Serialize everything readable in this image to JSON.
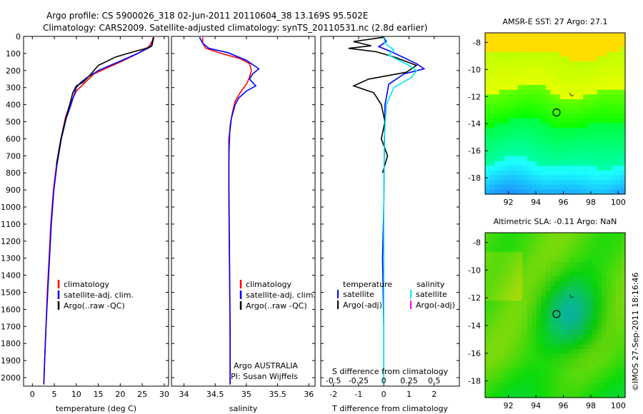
{
  "header": {
    "line1": "Argo profile: CS 5900026_318 02-Jun-2011 20110604_38 13.169S 95.502E",
    "line2": "Climatology: CARS2009. Satellite-adjusted climatology: synTS_20110531.nc (2.8d earlier)"
  },
  "side_label": "©IMOS 27-Sep-2011 18:16:46",
  "colors": {
    "clim": "#ff0000",
    "sat": "#0000ff",
    "argo": "#000000",
    "sal_sat": "#00e5ee",
    "sal_argo": "#ff00ff"
  },
  "chart_data": [
    {
      "type": "line",
      "id": "temperature",
      "xlabel": "temperature (deg C)",
      "xlim": [
        -2,
        31
      ],
      "ylim": [
        2050,
        0
      ],
      "xticks": [
        "0",
        "5",
        "10",
        "15",
        "20",
        "25",
        "30"
      ],
      "yticks": [
        "0",
        "100",
        "200",
        "300",
        "400",
        "500",
        "600",
        "700",
        "800",
        "900",
        "1000",
        "1100",
        "1200",
        "1300",
        "1400",
        "1500",
        "1600",
        "1700",
        "1800",
        "1900",
        "2000"
      ],
      "legend": [
        "climatology",
        "satellite-adj. clim.",
        "Argo(..raw -QC)"
      ],
      "series": [
        {
          "name": "climatology",
          "color": "clim",
          "points": [
            [
              27.5,
              5
            ],
            [
              27.3,
              25
            ],
            [
              26.5,
              60
            ],
            [
              24,
              100
            ],
            [
              20,
              150
            ],
            [
              16.5,
              190
            ],
            [
              14,
              220
            ],
            [
              12,
              270
            ],
            [
              10,
              320
            ],
            [
              8.5,
              400
            ],
            [
              7.5,
              480
            ],
            [
              6.5,
              600
            ],
            [
              5.5,
              750
            ],
            [
              4.8,
              900
            ],
            [
              4.2,
              1100
            ],
            [
              3.8,
              1300
            ],
            [
              3.4,
              1500
            ],
            [
              3.1,
              1700
            ],
            [
              2.8,
              1900
            ],
            [
              2.6,
              2040
            ]
          ]
        },
        {
          "name": "satellite-adj. clim.",
          "color": "sat",
          "points": [
            [
              27.6,
              5
            ],
            [
              27.4,
              25
            ],
            [
              27,
              60
            ],
            [
              24,
              100
            ],
            [
              19.5,
              150
            ],
            [
              15,
              200
            ],
            [
              12.5,
              240
            ],
            [
              11,
              270
            ],
            [
              10,
              300
            ],
            [
              8.8,
              400
            ],
            [
              7.7,
              480
            ],
            [
              6.6,
              600
            ],
            [
              5.6,
              750
            ],
            [
              4.9,
              900
            ],
            [
              4.3,
              1100
            ],
            [
              3.9,
              1300
            ],
            [
              3.5,
              1500
            ],
            [
              3.1,
              1700
            ],
            [
              2.8,
              1900
            ],
            [
              2.6,
              2040
            ]
          ]
        },
        {
          "name": "Argo(..raw -QC)",
          "color": "argo",
          "points": [
            [
              27.6,
              5
            ],
            [
              27.5,
              20
            ],
            [
              27.2,
              55
            ],
            [
              26,
              70
            ],
            [
              23,
              90
            ],
            [
              19,
              120
            ],
            [
              15,
              170
            ],
            [
              13,
              230
            ],
            [
              11.5,
              270
            ],
            [
              10,
              290
            ],
            [
              9.2,
              330
            ],
            [
              8.5,
              400
            ],
            [
              7.6,
              480
            ],
            [
              6.5,
              600
            ],
            [
              5.5,
              750
            ]
          ]
        }
      ]
    },
    {
      "type": "line",
      "id": "salinity",
      "xlabel": "salinity",
      "xlim": [
        33.8,
        36.1
      ],
      "ylim": [
        2050,
        0
      ],
      "xticks": [
        "34",
        "34.5",
        "35",
        "35.5",
        "36"
      ],
      "legend": [
        "climatology",
        "satellite-adj. clim.",
        "Argo(..raw -QC)"
      ],
      "annotations": [
        "Argo AUSTRALIA",
        "PI: Susan Wijffels"
      ],
      "series": [
        {
          "name": "climatology",
          "color": "clim",
          "points": [
            [
              34.3,
              5
            ],
            [
              34.3,
              40
            ],
            [
              34.35,
              70
            ],
            [
              34.6,
              100
            ],
            [
              34.9,
              130
            ],
            [
              35.05,
              160
            ],
            [
              35.08,
              200
            ],
            [
              35.05,
              240
            ],
            [
              35.0,
              280
            ],
            [
              34.9,
              330
            ],
            [
              34.82,
              380
            ],
            [
              34.78,
              440
            ],
            [
              34.74,
              520
            ],
            [
              34.72,
              700
            ],
            [
              34.72,
              1000
            ],
            [
              34.73,
              1400
            ],
            [
              34.74,
              1800
            ],
            [
              34.74,
              2040
            ]
          ]
        },
        {
          "name": "satellite-adj. clim.",
          "color": "sat",
          "points": [
            [
              34.25,
              5
            ],
            [
              34.3,
              40
            ],
            [
              34.4,
              70
            ],
            [
              34.7,
              95
            ],
            [
              35.0,
              140
            ],
            [
              35.2,
              190
            ],
            [
              35.1,
              220
            ],
            [
              35.05,
              250
            ],
            [
              35.15,
              290
            ],
            [
              35.0,
              320
            ],
            [
              34.88,
              360
            ],
            [
              34.82,
              400
            ],
            [
              34.76,
              480
            ],
            [
              34.72,
              600
            ],
            [
              34.72,
              900
            ],
            [
              34.73,
              1300
            ],
            [
              34.74,
              1700
            ],
            [
              34.74,
              2040
            ]
          ]
        }
      ]
    },
    {
      "type": "line",
      "id": "difference",
      "xlabel": "T difference from climatology",
      "top_label": "S difference from climatology",
      "xlim": [
        -2.5,
        3
      ],
      "ylim": [
        2050,
        0
      ],
      "xticks": [
        "-2",
        "-1",
        "0",
        "1",
        "2"
      ],
      "top_ticks": [
        "-0.5",
        "-0.25",
        "0",
        "0.25",
        "0.5"
      ],
      "legend_temperature": [
        "temperature",
        "satellite",
        "Argo(-adj)"
      ],
      "legend_salinity": [
        "salinity",
        "satellite",
        "Argo(-adj)"
      ],
      "series": [
        {
          "name": "satellite",
          "color": "sat",
          "points": [
            [
              0,
              5
            ],
            [
              0.1,
              30
            ],
            [
              -0.2,
              60
            ],
            [
              0.3,
              90
            ],
            [
              1.3,
              160
            ],
            [
              1.6,
              190
            ],
            [
              0.8,
              220
            ],
            [
              0.2,
              280
            ],
            [
              0.05,
              400
            ],
            [
              0.02,
              700
            ],
            [
              0.0,
              1000
            ],
            [
              -0.05,
              1300
            ],
            [
              0.0,
              1700
            ],
            [
              0.0,
              2040
            ]
          ]
        },
        {
          "name": "Argo T",
          "color": "argo",
          "points": [
            [
              0,
              5
            ],
            [
              -1.2,
              30
            ],
            [
              -0.5,
              55
            ],
            [
              -1.4,
              70
            ],
            [
              -0.3,
              90
            ],
            [
              0.4,
              120
            ],
            [
              1.3,
              170
            ],
            [
              0.9,
              210
            ],
            [
              -0.6,
              250
            ],
            [
              -1.2,
              290
            ],
            [
              -0.4,
              330
            ],
            [
              -0.1,
              400
            ],
            [
              0.05,
              500
            ],
            [
              -0.1,
              600
            ],
            [
              0.15,
              700
            ],
            [
              -0.05,
              800
            ]
          ]
        },
        {
          "name": "satellite S",
          "color": "sal_sat",
          "points": [
            [
              0,
              5
            ],
            [
              0.05,
              40
            ],
            [
              0.4,
              80
            ],
            [
              0.2,
              110
            ],
            [
              1.0,
              170
            ],
            [
              1.3,
              200
            ],
            [
              1.1,
              240
            ],
            [
              0.4,
              300
            ],
            [
              0.1,
              400
            ],
            [
              0.02,
              600
            ],
            [
              0.0,
              1000
            ],
            [
              0.0,
              1500
            ],
            [
              0.0,
              2040
            ]
          ]
        }
      ]
    },
    {
      "type": "heatmap",
      "id": "sst_map",
      "title": "AMSR-E SST: 27 Argo: 27.1",
      "xlim": [
        90.3,
        100.5
      ],
      "ylim": [
        -19.2,
        -7.3
      ],
      "xticks": [
        "92",
        "94",
        "96",
        "98",
        "100"
      ],
      "yticks": [
        "-8",
        "-10",
        "-12",
        "-14",
        "-16",
        "-18"
      ],
      "marker": {
        "lon": 95.5,
        "lat": -13.17
      }
    },
    {
      "type": "heatmap",
      "id": "sla_map",
      "title": "Altimetric SLA: -0.11 Argo: NaN",
      "xlim": [
        90.3,
        100.5
      ],
      "ylim": [
        -19.2,
        -7.3
      ],
      "xticks": [
        "92",
        "94",
        "96",
        "98",
        "100"
      ],
      "yticks": [
        "-8",
        "-10",
        "-12",
        "-14",
        "-16",
        "-18"
      ],
      "marker": {
        "lon": 95.5,
        "lat": -13.17
      }
    }
  ]
}
